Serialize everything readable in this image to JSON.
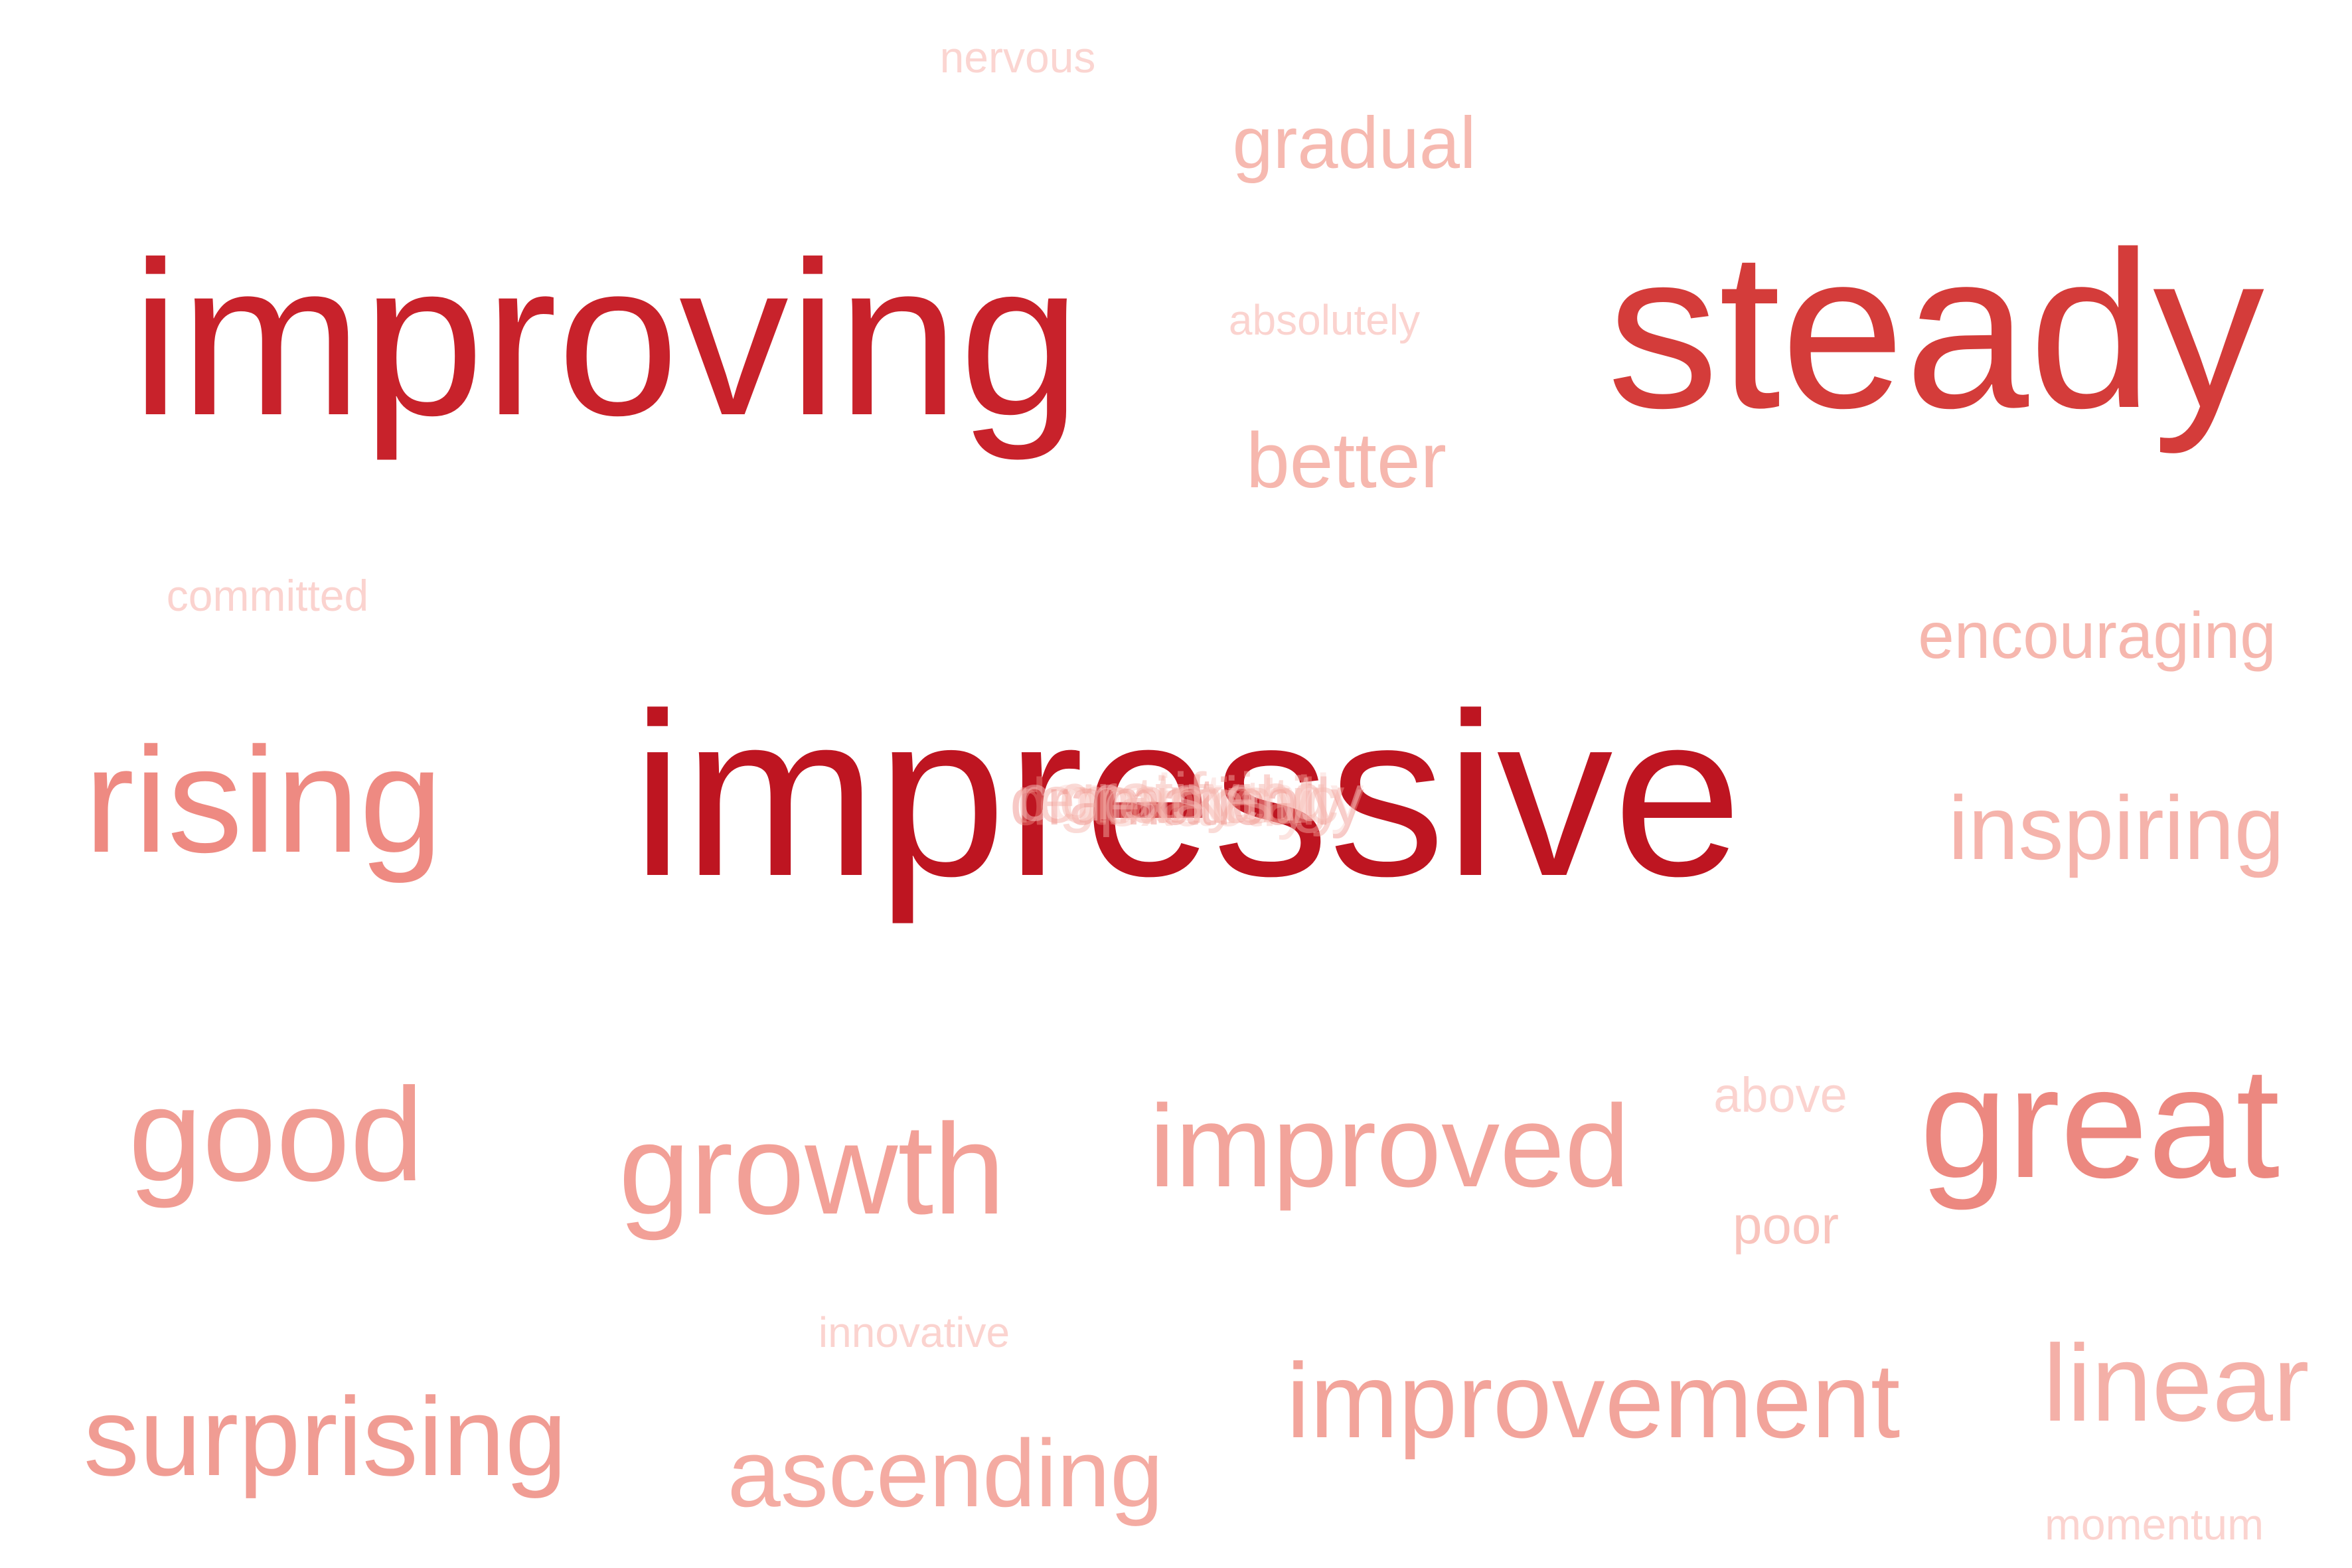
{
  "words": [
    {
      "text": "nervous",
      "color": "#fbd5d1"
    },
    {
      "text": "gradual",
      "color": "#f6b9b0"
    },
    {
      "text": "improving",
      "color": "#c8222b"
    },
    {
      "text": "absolutely",
      "color": "#fbd3cf"
    },
    {
      "text": "steady",
      "color": "#d43c3a"
    },
    {
      "text": "better",
      "color": "#f6b7ae"
    },
    {
      "text": "committed",
      "color": "#fbd3cf"
    },
    {
      "text": "encouraging",
      "color": "#f6b7ae"
    },
    {
      "text": "rising",
      "color": "#ee8a82"
    },
    {
      "text": "impressive",
      "color": "#be1521"
    },
    {
      "text": "inspiring",
      "color": "#f5b3ab"
    },
    {
      "text": "good",
      "color": "#f09c93"
    },
    {
      "text": "growth",
      "color": "#f2a097"
    },
    {
      "text": "improved",
      "color": "#f2a49b"
    },
    {
      "text": "above",
      "color": "#fbd3cf"
    },
    {
      "text": "great",
      "color": "#ec8880"
    },
    {
      "text": "poor",
      "color": "#f9c4bd"
    },
    {
      "text": "innovative",
      "color": "#fbd3cf"
    },
    {
      "text": "surprising",
      "color": "#f09c93"
    },
    {
      "text": "ascending",
      "color": "#f4aba2"
    },
    {
      "text": "improvement",
      "color": "#f2a49b"
    },
    {
      "text": "linear",
      "color": "#f4b0a8"
    },
    {
      "text": "momentum",
      "color": "#fbd3cf"
    }
  ],
  "overlapping_words": [
    {
      "text": "remarkably",
      "color": "#f4a39a"
    },
    {
      "text": "gratifying",
      "color": "#f6b0a8"
    },
    {
      "text": "exactly",
      "color": "#f9c4bd"
    },
    {
      "text": "dramatically",
      "color": "#ee8a82"
    },
    {
      "text": "consistently",
      "color": "#fbd3cf"
    },
    {
      "text": "optimistic",
      "color": "#f6b7ae"
    }
  ]
}
